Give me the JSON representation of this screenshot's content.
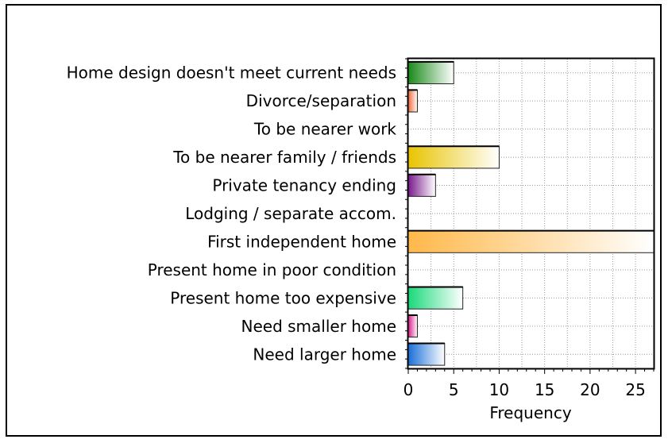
{
  "chart_data": {
    "type": "bar",
    "orientation": "horizontal",
    "title": "",
    "xlabel": "Frequency",
    "ylabel": "",
    "xlim": [
      0,
      27
    ],
    "xticks": [
      0,
      5,
      10,
      15,
      20,
      25
    ],
    "grid": true,
    "legend": "none",
    "categories": [
      "Home design doesn't meet current needs",
      "Divorce/separation",
      "To be nearer work",
      "To be nearer family / friends",
      "Private tenancy ending",
      "Lodging / separate accom.",
      "First independent home",
      "Present home in poor condition",
      "Present home too expensive",
      "Need smaller home",
      "Need larger home"
    ],
    "values": [
      5,
      1,
      0,
      10,
      3,
      0,
      27,
      0,
      6,
      1,
      4
    ],
    "colors": [
      "#1a8a1a",
      "#f26a3a",
      "#888888",
      "#e8c400",
      "#7a1a8c",
      "#888888",
      "#ffb84a",
      "#888888",
      "#1ad97a",
      "#d81b8a",
      "#1a6fd8"
    ]
  }
}
